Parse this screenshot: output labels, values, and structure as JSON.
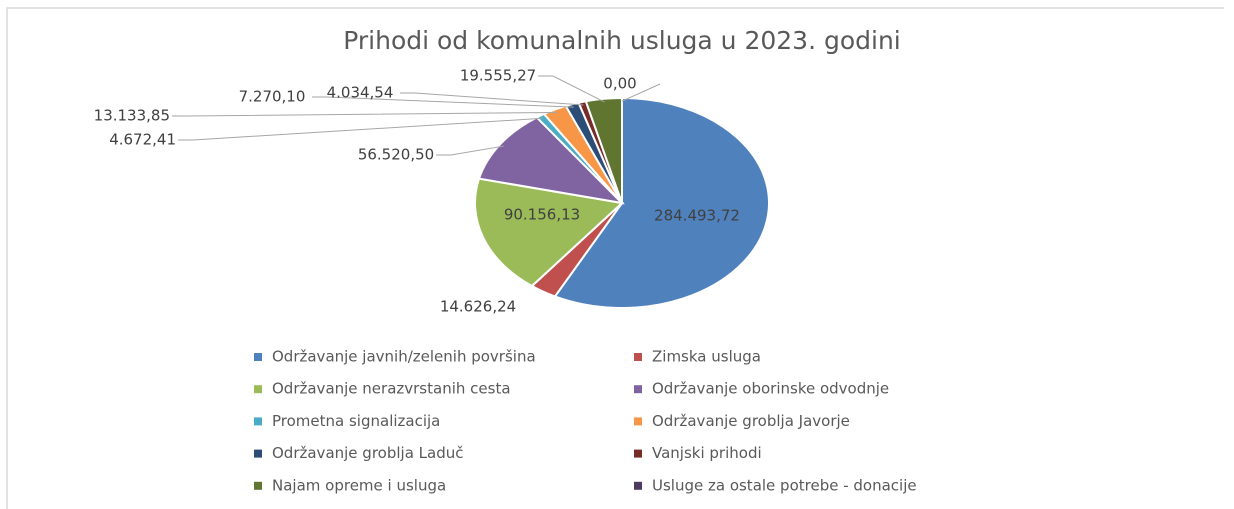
{
  "chart_data": {
    "type": "pie",
    "title": "Prihodi od komunalnih usluga u 2023. godini",
    "categories": [
      "Održavanje javnih/zelenih površina",
      "Zimska usluga",
      "Održavanje nerazvrstanih cesta",
      "Održavanje oborinske odvodnje",
      "Prometna signalizacija",
      "Održavanje groblja Javorje",
      "Održavanje groblja Laduč",
      "Vanjski prihodi",
      "Najam opreme i usluga",
      "Usluge za ostale potrebe - donacije"
    ],
    "values": [
      284493.72,
      14626.24,
      90156.13,
      56520.5,
      4672.41,
      13133.85,
      7270.1,
      4034.54,
      19555.27,
      0
    ],
    "value_labels": [
      "284.493,72",
      "14.626,24",
      "90.156,13",
      "56.520,50",
      "4.672,41",
      "13.133,85",
      "7.270,10",
      "4.034,54",
      "19.555,27",
      "0,00"
    ],
    "colors": [
      "#4f81bd",
      "#c0504d",
      "#9bbb59",
      "#8064a2",
      "#4bacc6",
      "#f79646",
      "#2c4d75",
      "#772c2a",
      "#5f7530",
      "#4d3b62"
    ],
    "legend": "bottom"
  }
}
